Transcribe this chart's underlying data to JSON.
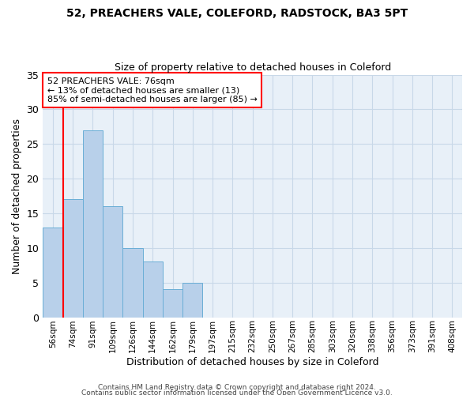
{
  "title1": "52, PREACHERS VALE, COLEFORD, RADSTOCK, BA3 5PT",
  "title2": "Size of property relative to detached houses in Coleford",
  "xlabel": "Distribution of detached houses by size in Coleford",
  "ylabel": "Number of detached properties",
  "bar_labels": [
    "56sqm",
    "74sqm",
    "91sqm",
    "109sqm",
    "126sqm",
    "144sqm",
    "162sqm",
    "179sqm",
    "197sqm",
    "215sqm",
    "232sqm",
    "250sqm",
    "267sqm",
    "285sqm",
    "303sqm",
    "320sqm",
    "338sqm",
    "356sqm",
    "373sqm",
    "391sqm",
    "408sqm"
  ],
  "bar_values": [
    13,
    17,
    27,
    16,
    10,
    8,
    4,
    5,
    0,
    0,
    0,
    0,
    0,
    0,
    0,
    0,
    0,
    0,
    0,
    0,
    0
  ],
  "bar_color": "#b8d0ea",
  "bar_edge_color": "#6aaed6",
  "grid_color": "#c8d8e8",
  "background_color": "#e8f0f8",
  "annotation_text": "52 PREACHERS VALE: 76sqm\n← 13% of detached houses are smaller (13)\n85% of semi-detached houses are larger (85) →",
  "annotation_box_color": "white",
  "annotation_box_edge": "red",
  "ylim": [
    0,
    35
  ],
  "red_line_index": 1,
  "footer1": "Contains HM Land Registry data © Crown copyright and database right 2024.",
  "footer2": "Contains public sector information licensed under the Open Government Licence v3.0."
}
